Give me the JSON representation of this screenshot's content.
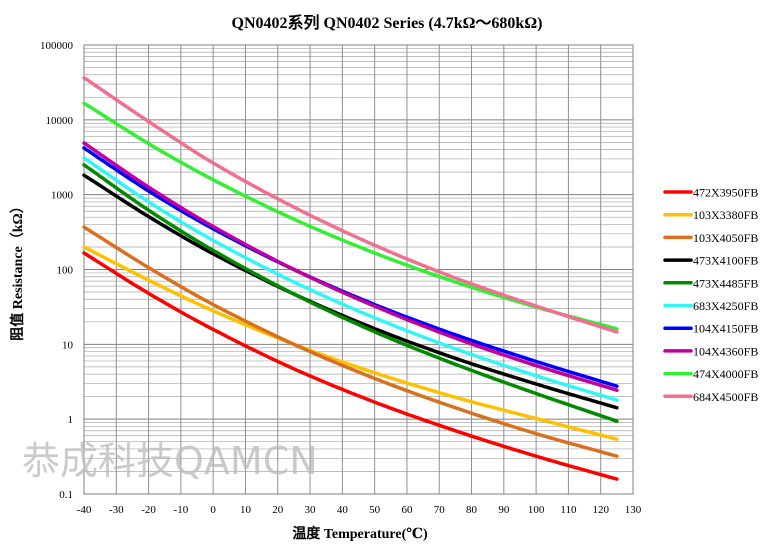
{
  "chart_data": {
    "type": "line",
    "title": "QN0402系列  QN0402 Series (4.7kΩ～680kΩ)",
    "xlabel": "温度 Temperature(℃)",
    "ylabel": "阻值 Resistance（kΩ）",
    "xlim": [
      -40,
      130
    ],
    "ylim": [
      0.1,
      100000
    ],
    "yscale": "log",
    "grid": true,
    "legend_position": "right",
    "x_ticks": [
      "-40",
      "-30",
      "-20",
      "-10",
      "0",
      "10",
      "20",
      "30",
      "40",
      "50",
      "60",
      "70",
      "80",
      "90",
      "100",
      "110",
      "120",
      "130"
    ],
    "y_ticks": [
      "0.1",
      "1",
      "10",
      "100",
      "1000",
      "10000",
      "100000"
    ],
    "x": [
      -40,
      -20,
      0,
      25,
      50,
      75,
      100,
      125
    ],
    "series": [
      {
        "name": "472X3950FB",
        "color": "#ff0000",
        "values": [
          166,
          48,
          15.8,
          4.7,
          1.69,
          0.7,
          0.32,
          0.158
        ]
      },
      {
        "name": "103X3380FB",
        "color": "#ffc000",
        "values": [
          200,
          72,
          28,
          10,
          4.16,
          1.96,
          1.02,
          0.54
        ]
      },
      {
        "name": "103X4050FB",
        "color": "#d9701f",
        "values": [
          369,
          106,
          34,
          10,
          3.5,
          1.42,
          0.64,
          0.32
        ]
      },
      {
        "name": "473X4100FB",
        "color": "#000000",
        "values": [
          1820,
          510,
          162,
          47,
          16.2,
          6.5,
          2.95,
          1.42
        ]
      },
      {
        "name": "473X4485FB",
        "color": "#008a00",
        "values": [
          2500,
          620,
          180,
          47,
          14.7,
          5.4,
          2.2,
          0.94
        ]
      },
      {
        "name": "683X4250FB",
        "color": "#33f5f5",
        "values": [
          3100,
          800,
          245,
          68,
          22.6,
          8.7,
          3.8,
          1.8
        ]
      },
      {
        "name": "104X4150FB",
        "color": "#0000ff",
        "values": [
          4200,
          1120,
          350,
          100,
          34,
          13.4,
          5.9,
          2.76
        ]
      },
      {
        "name": "104X4360FB",
        "color": "#c0009c",
        "values": [
          4900,
          1260,
          375,
          100,
          32.3,
          12.1,
          5.2,
          2.44
        ]
      },
      {
        "name": "474X4000FB",
        "color": "#33ee33",
        "values": [
          16700,
          4800,
          1580,
          470,
          166,
          68,
          31.5,
          16.1
        ]
      },
      {
        "name": "684X4500FB",
        "color": "#f0708f",
        "values": [
          36500,
          9500,
          2650,
          680,
          211,
          77,
          32.5,
          14.6
        ]
      }
    ]
  },
  "watermark": "恭成科技QAMCN"
}
